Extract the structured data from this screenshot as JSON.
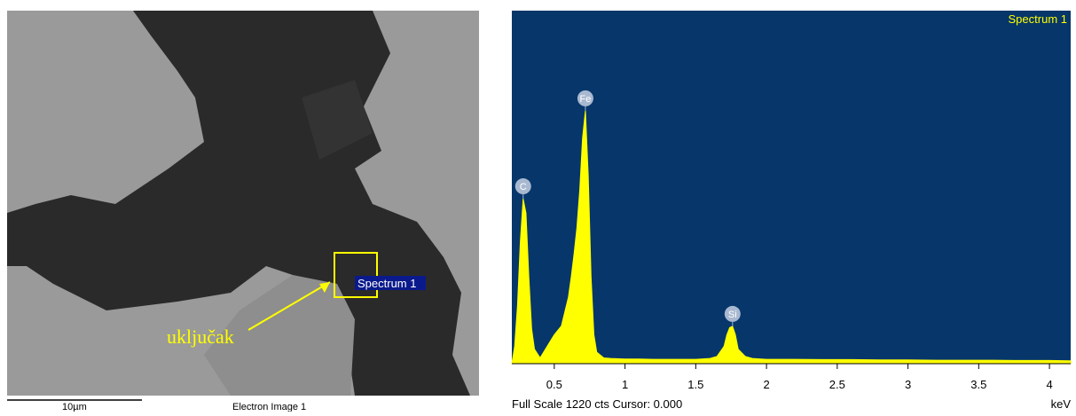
{
  "image": {
    "spectrum_label": "Spectrum 1",
    "annotation": "uključak",
    "scale_label": "10µm",
    "caption": "Electron Image 1"
  },
  "chart_data": {
    "type": "area",
    "title": "Spectrum 1",
    "x_label": "keV",
    "footer": "Full Scale 1220 cts Cursor: 0.000",
    "color": "#ffff00",
    "background": "#06366a",
    "x": [
      0.2,
      0.22,
      0.24,
      0.26,
      0.28,
      0.3,
      0.32,
      0.34,
      0.36,
      0.4,
      0.45,
      0.5,
      0.55,
      0.6,
      0.62,
      0.64,
      0.66,
      0.68,
      0.7,
      0.72,
      0.74,
      0.76,
      0.78,
      0.8,
      0.85,
      0.9,
      1.0,
      1.1,
      1.2,
      1.3,
      1.4,
      1.5,
      1.6,
      1.65,
      1.7,
      1.72,
      1.74,
      1.76,
      1.78,
      1.8,
      1.85,
      1.9,
      2.0,
      2.2,
      2.4,
      2.6,
      2.8,
      3.0,
      3.2,
      3.4,
      3.6,
      3.8,
      4.0,
      4.15
    ],
    "values": [
      0,
      60,
      200,
      420,
      570,
      520,
      300,
      120,
      50,
      20,
      60,
      100,
      130,
      230,
      300,
      380,
      470,
      600,
      780,
      874,
      650,
      300,
      100,
      40,
      20,
      18,
      16,
      16,
      15,
      15,
      15,
      15,
      18,
      25,
      60,
      100,
      125,
      129,
      100,
      50,
      25,
      18,
      15,
      15,
      14,
      14,
      13,
      13,
      12,
      12,
      12,
      11,
      11,
      10
    ],
    "peaks": [
      {
        "label": "C",
        "x": 0.28,
        "value": 570
      },
      {
        "label": "Fe",
        "x": 0.72,
        "value": 874
      },
      {
        "label": "Si",
        "x": 1.76,
        "value": 129
      }
    ],
    "xlim": [
      0.2,
      4.15
    ],
    "ylim": [
      0,
      1220
    ],
    "xticks": [
      0.5,
      1,
      1.5,
      2,
      2.5,
      3,
      3.5,
      4
    ]
  }
}
